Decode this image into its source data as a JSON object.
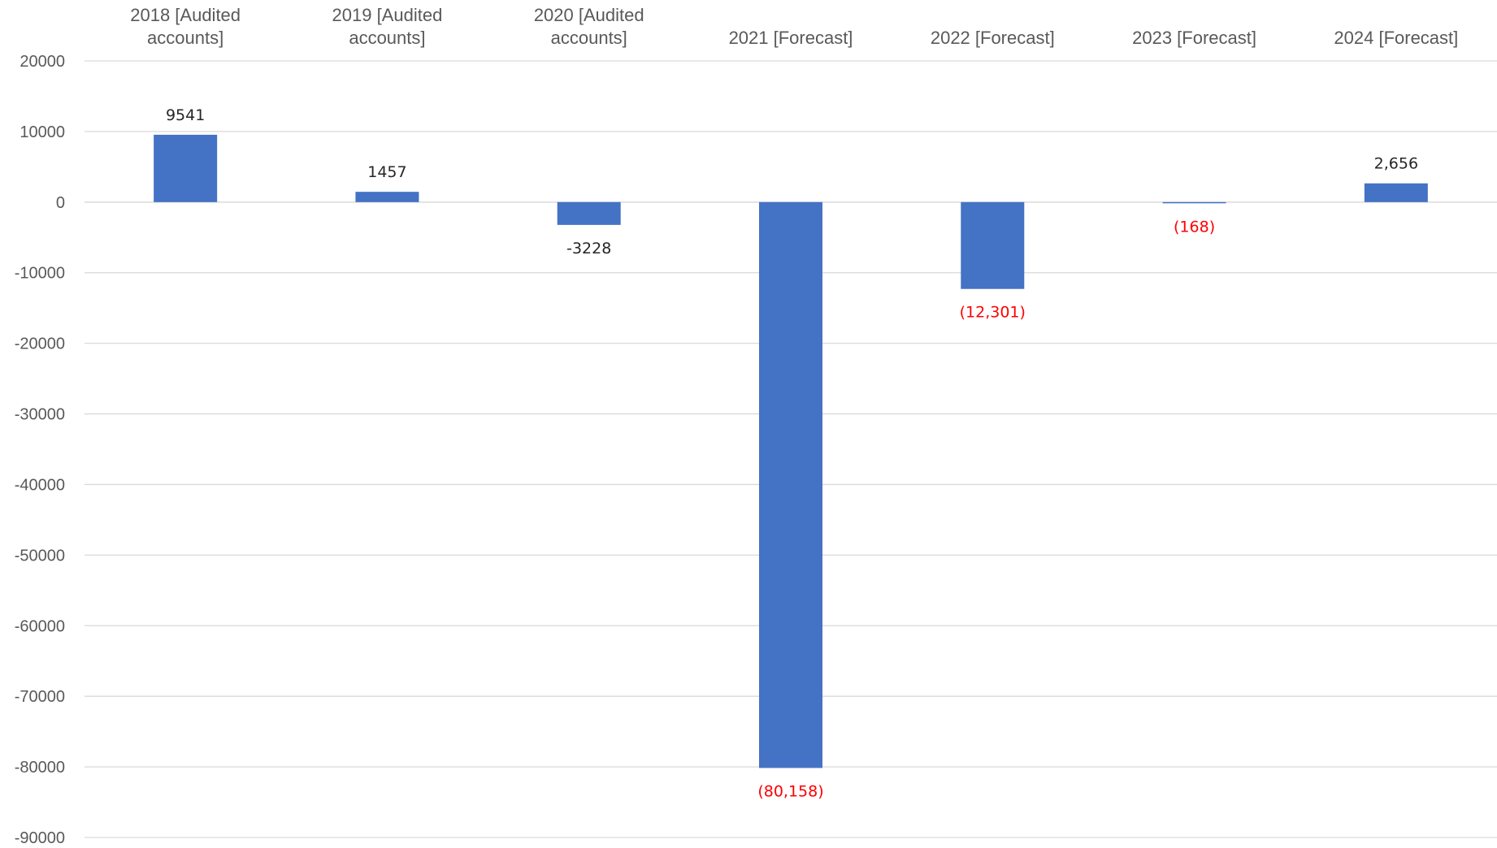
{
  "chart_data": {
    "type": "bar",
    "categories": [
      [
        "2018 [Audited",
        "accounts]"
      ],
      [
        "2019 [Audited",
        "accounts]"
      ],
      [
        "2020 [Audited",
        "accounts]"
      ],
      [
        "2021 [Forecast]"
      ],
      [
        "2022 [Forecast]"
      ],
      [
        "2023 [Forecast]"
      ],
      [
        "2024 [Forecast]"
      ]
    ],
    "values": [
      9541,
      1457,
      -3228,
      -80158,
      -12301,
      -168,
      2656
    ],
    "data_labels": [
      "9541",
      "1457",
      "-3228",
      "(80,158)",
      "(12,301)",
      "(168)",
      "2,656"
    ],
    "data_label_colors": [
      "#262626",
      "#262626",
      "#262626",
      "#ff0000",
      "#ff0000",
      "#ff0000",
      "#262626"
    ],
    "ylim": [
      -90000,
      20000
    ],
    "yticks": [
      20000,
      10000,
      0,
      -10000,
      -20000,
      -30000,
      -40000,
      -50000,
      -60000,
      -70000,
      -80000,
      -90000
    ],
    "ytick_labels": [
      "20000",
      "10000",
      "0",
      "-10000",
      "-20000",
      "-30000",
      "-40000",
      "-50000",
      "-60000",
      "-70000",
      "-80000",
      "-90000"
    ],
    "category_axis_position": "top",
    "grid": true,
    "bar_color": "#4472c4",
    "title": "",
    "xlabel": "",
    "ylabel": ""
  }
}
